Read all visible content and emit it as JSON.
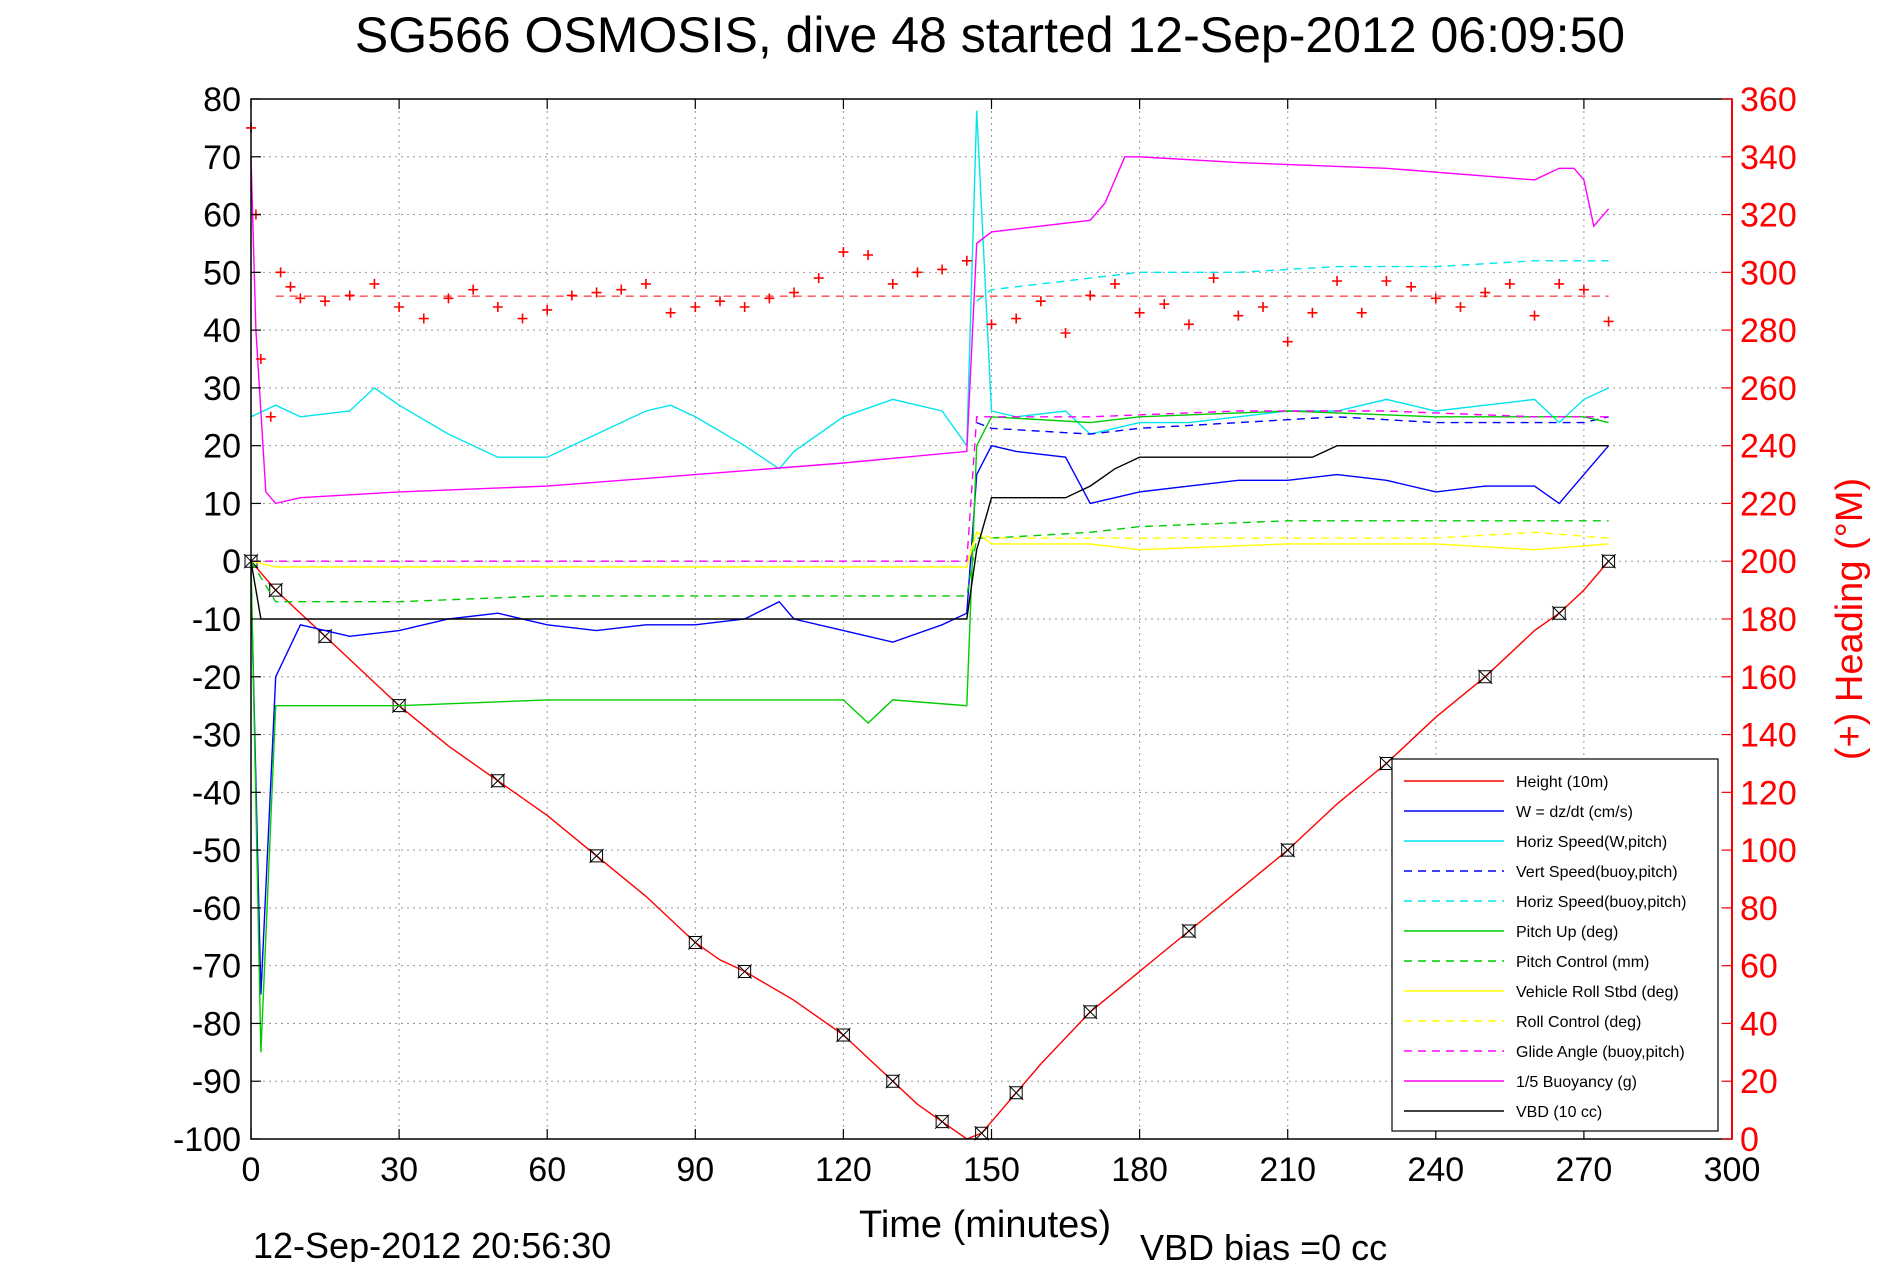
{
  "chart_data": {
    "type": "line",
    "title": "SG566 OSMOSIS, dive 48 started 12-Sep-2012 06:09:50",
    "xlabel": "Time (minutes)",
    "ylabel": "",
    "ylabel_right": "(+) Heading (°M)",
    "xlim": [
      0,
      300
    ],
    "ylim": [
      -100,
      80
    ],
    "ylim_right": [
      0,
      360
    ],
    "grid": true,
    "x_ticks": [
      "0",
      "30",
      "60",
      "90",
      "120",
      "150",
      "180",
      "210",
      "240",
      "270",
      "300"
    ],
    "y_ticks": [
      "80",
      "70",
      "60",
      "50",
      "40",
      "30",
      "20",
      "10",
      "0",
      "-10",
      "-20",
      "-30",
      "-40",
      "-50",
      "-60",
      "-70",
      "-80",
      "-90",
      "-100"
    ],
    "y_ticks_right": [
      "360",
      "340",
      "320",
      "300",
      "280",
      "260",
      "240",
      "220",
      "200",
      "180",
      "160",
      "140",
      "120",
      "100",
      "80",
      "60",
      "40",
      "20",
      "0"
    ],
    "footer_left": "12-Sep-2012 20:56:30",
    "footer_right": "VBD bias =0 cc",
    "legend_position": "bottom-right",
    "series": [
      {
        "name": "Height (10m)",
        "color": "#ff0000",
        "dash": "solid",
        "x": [
          0,
          2,
          5,
          10,
          15,
          20,
          30,
          40,
          50,
          60,
          70,
          80,
          90,
          95,
          100,
          110,
          120,
          125,
          130,
          135,
          140,
          145,
          148,
          150,
          155,
          160,
          170,
          180,
          190,
          200,
          210,
          220,
          230,
          240,
          250,
          260,
          265,
          270,
          275
        ],
        "y": [
          0,
          -2,
          -5,
          -9,
          -13,
          -17,
          -25,
          -32,
          -38,
          -44,
          -51,
          -58,
          -66,
          -69,
          -71,
          -76,
          -82,
          -86,
          -90,
          -94,
          -97,
          -100,
          -99,
          -97,
          -92,
          -87,
          -78,
          -71,
          -64,
          -57,
          -50,
          -42,
          -35,
          -27,
          -20,
          -12,
          -9,
          -5,
          0
        ]
      },
      {
        "name": "W = dz/dt (cm/s)",
        "color": "#0000ff",
        "dash": "solid",
        "x": [
          0,
          2,
          5,
          10,
          20,
          30,
          40,
          50,
          60,
          70,
          80,
          90,
          100,
          107,
          110,
          120,
          130,
          140,
          145,
          147,
          150,
          155,
          165,
          170,
          180,
          190,
          200,
          210,
          220,
          230,
          240,
          250,
          260,
          265,
          270,
          275
        ],
        "y": [
          -2,
          -75,
          -20,
          -11,
          -13,
          -12,
          -10,
          -9,
          -11,
          -12,
          -11,
          -11,
          -10,
          -7,
          -10,
          -12,
          -14,
          -11,
          -9,
          15,
          20,
          19,
          18,
          10,
          12,
          13,
          14,
          14,
          15,
          14,
          12,
          13,
          13,
          10,
          15,
          20
        ]
      },
      {
        "name": "Horiz Speed(W,pitch)",
        "color": "#00e5ee",
        "dash": "solid",
        "x": [
          0,
          5,
          10,
          20,
          25,
          30,
          40,
          50,
          60,
          70,
          80,
          85,
          90,
          100,
          107,
          110,
          120,
          130,
          140,
          145,
          147,
          150,
          155,
          165,
          170,
          180,
          190,
          200,
          210,
          220,
          230,
          240,
          250,
          260,
          265,
          270,
          275
        ],
        "y": [
          25,
          27,
          25,
          26,
          30,
          27,
          22,
          18,
          18,
          22,
          26,
          27,
          25,
          20,
          16,
          19,
          25,
          28,
          26,
          20,
          78,
          26,
          25,
          26,
          22,
          24,
          24,
          25,
          26,
          26,
          28,
          26,
          27,
          28,
          24,
          28,
          30
        ]
      },
      {
        "name": "Vert Speed(buoy,pitch)",
        "color": "#0000ff",
        "dash": "dashed",
        "x": [
          147,
          150,
          170,
          180,
          200,
          220,
          240,
          260,
          270,
          275
        ],
        "y": [
          24,
          23,
          22,
          23,
          24,
          25,
          24,
          24,
          24,
          25
        ]
      },
      {
        "name": "Horiz Speed(buoy,pitch)",
        "color": "#00e5ee",
        "dash": "dashed",
        "x": [
          147,
          150,
          170,
          180,
          200,
          220,
          240,
          260,
          270,
          275
        ],
        "y": [
          45,
          47,
          49,
          50,
          50,
          51,
          51,
          52,
          52,
          52
        ]
      },
      {
        "name": "Pitch Up (deg)",
        "color": "#00cc00",
        "dash": "solid",
        "x": [
          0,
          2,
          5,
          10,
          30,
          60,
          90,
          120,
          125,
          130,
          145,
          147,
          150,
          170,
          180,
          210,
          240,
          260,
          270,
          275
        ],
        "y": [
          0,
          -85,
          -25,
          -25,
          -25,
          -24,
          -24,
          -24,
          -28,
          -24,
          -25,
          20,
          25,
          24,
          25,
          26,
          25,
          25,
          25,
          24
        ]
      },
      {
        "name": "Pitch Control (mm)",
        "color": "#00cc00",
        "dash": "dashed",
        "x": [
          0,
          5,
          30,
          60,
          90,
          120,
          145,
          147,
          150,
          170,
          180,
          210,
          240,
          260,
          275
        ],
        "y": [
          0,
          -7,
          -7,
          -6,
          -6,
          -6,
          -6,
          4,
          4,
          5,
          6,
          7,
          7,
          7,
          7
        ]
      },
      {
        "name": "Vehicle Roll Stbd (deg)",
        "color": "#ffff00",
        "dash": "solid",
        "x": [
          0,
          5,
          10,
          30,
          60,
          90,
          120,
          145,
          147,
          150,
          170,
          180,
          210,
          240,
          260,
          275
        ],
        "y": [
          0,
          -1,
          -1,
          -1,
          -1,
          -1,
          -1,
          -1,
          5,
          3,
          3,
          2,
          3,
          3,
          2,
          3
        ]
      },
      {
        "name": "Roll Control (deg)",
        "color": "#ffff00",
        "dash": "dashed",
        "x": [
          0,
          5,
          30,
          60,
          90,
          120,
          145,
          147,
          150,
          170,
          210,
          240,
          260,
          275
        ],
        "y": [
          0,
          0,
          0,
          0,
          0,
          0,
          0,
          5,
          4,
          4,
          4,
          4,
          5,
          4
        ]
      },
      {
        "name": "Glide Angle (buoy,pitch)",
        "color": "#ff00ff",
        "dash": "dashed",
        "x": [
          0,
          5,
          30,
          60,
          90,
          120,
          145,
          147,
          150,
          170,
          200,
          230,
          260,
          275
        ],
        "y": [
          0,
          0,
          0,
          0,
          0,
          0,
          0,
          25,
          25,
          25,
          26,
          26,
          25,
          25
        ]
      },
      {
        "name": "1/5 Buoyancy (g)",
        "color": "#ff00ff",
        "dash": "solid",
        "x": [
          0,
          1,
          3,
          5,
          10,
          30,
          60,
          90,
          120,
          145,
          147,
          150,
          160,
          170,
          173,
          177,
          180,
          200,
          230,
          260,
          265,
          268,
          270,
          272,
          275
        ],
        "y": [
          70,
          40,
          12,
          10,
          11,
          12,
          13,
          15,
          17,
          19,
          55,
          57,
          58,
          59,
          62,
          70,
          70,
          69,
          68,
          66,
          68,
          68,
          66,
          58,
          61
        ]
      },
      {
        "name": "VBD (10 cc)",
        "color": "#000000",
        "dash": "solid",
        "x": [
          0,
          2,
          5,
          60,
          120,
          145,
          147,
          150,
          165,
          170,
          175,
          180,
          215,
          220,
          265,
          270,
          275
        ],
        "y": [
          0,
          -10,
          -10,
          -10,
          -10,
          -10,
          2,
          11,
          11,
          13,
          16,
          18,
          18,
          20,
          20,
          20,
          20
        ]
      },
      {
        "name": "Heading",
        "color": "#ff0000",
        "dash": "plus",
        "x": [
          0,
          1,
          2,
          4,
          6,
          8,
          10,
          15,
          20,
          25,
          30,
          35,
          40,
          45,
          50,
          55,
          60,
          65,
          70,
          75,
          80,
          85,
          90,
          95,
          100,
          105,
          110,
          115,
          120,
          125,
          130,
          135,
          140,
          145,
          150,
          155,
          160,
          165,
          170,
          175,
          180,
          185,
          190,
          195,
          200,
          205,
          210,
          215,
          220,
          225,
          230,
          235,
          240,
          245,
          250,
          255,
          260,
          265,
          270,
          275
        ],
        "y": [
          350,
          320,
          270,
          250,
          300,
          295,
          291,
          290,
          292,
          296,
          288,
          284,
          291,
          294,
          288,
          284,
          287,
          292,
          293,
          294,
          296,
          286,
          288,
          290,
          288,
          291,
          293,
          298,
          307,
          306,
          296,
          300,
          301,
          304,
          282,
          284,
          290,
          279,
          292,
          296,
          286,
          289,
          282,
          298,
          285,
          288,
          276,
          286,
          297,
          286,
          297,
          295,
          291,
          288,
          293,
          296,
          285,
          296,
          294,
          283
        ]
      }
    ]
  }
}
